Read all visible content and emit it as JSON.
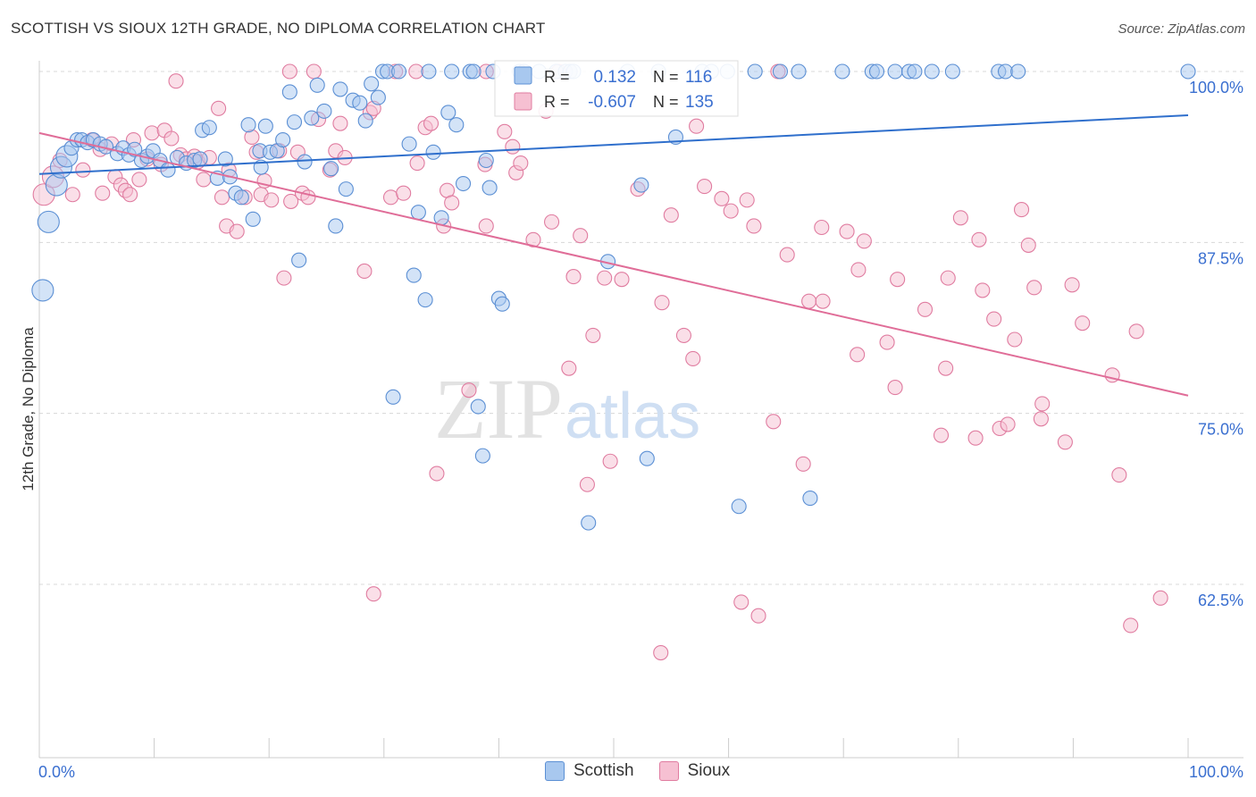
{
  "title": "SCOTTISH VS SIOUX 12TH GRADE, NO DIPLOMA CORRELATION CHART",
  "source": "Source: ZipAtlas.com",
  "watermark": {
    "zip": "ZIP",
    "atlas": "atlas"
  },
  "colors": {
    "scottish_fill": "#a8c8ef",
    "scottish_stroke": "#5b8fd4",
    "scottish_line": "#2f6fcc",
    "sioux_fill": "#f6c0d2",
    "sioux_stroke": "#e07ca0",
    "sioux_line": "#e06d98",
    "value_text": "#3a6fd0",
    "grid": "#d8d8d8"
  },
  "stats": {
    "scottish": {
      "r_label": "R =",
      "r_value": "0.132",
      "n_label": "N =",
      "n_value": "116"
    },
    "sioux": {
      "r_label": "R =",
      "r_value": "-0.607",
      "n_label": "N =",
      "n_value": "135"
    }
  },
  "legend": {
    "scottish": "Scottish",
    "sioux": "Sioux"
  },
  "chart_data": {
    "type": "scatter",
    "xlabel": "",
    "ylabel": "12th Grade, No Diploma",
    "xlim": [
      0,
      100
    ],
    "ylim": [
      52,
      100.9
    ],
    "x_tick_labels": {
      "left": "0.0%",
      "right": "100.0%"
    },
    "y_ticks": [
      {
        "value": 100.0,
        "label": "100.0%"
      },
      {
        "value": 87.5,
        "label": "87.5%"
      },
      {
        "value": 75.0,
        "label": "75.0%"
      },
      {
        "value": 62.5,
        "label": "62.5%"
      }
    ],
    "grid": true,
    "series": [
      {
        "name": "Scottish",
        "trend": {
          "x": [
            0,
            100
          ],
          "y": [
            92.5,
            96.8
          ]
        },
        "points": [
          [
            0.3,
            84.0
          ],
          [
            0.8,
            89.0
          ],
          [
            1.5,
            91.7
          ],
          [
            1.9,
            93.0
          ],
          [
            2.4,
            93.8
          ],
          [
            2.8,
            94.4
          ],
          [
            3.3,
            95.0
          ],
          [
            3.7,
            95.0
          ],
          [
            4.2,
            94.8
          ],
          [
            4.7,
            95.0
          ],
          [
            5.3,
            94.7
          ],
          [
            5.8,
            94.5
          ],
          [
            6.8,
            94.0
          ],
          [
            7.3,
            94.4
          ],
          [
            7.8,
            93.9
          ],
          [
            8.3,
            94.3
          ],
          [
            8.9,
            93.5
          ],
          [
            9.4,
            93.8
          ],
          [
            9.9,
            94.2
          ],
          [
            10.5,
            93.5
          ],
          [
            11.2,
            92.8
          ],
          [
            12.0,
            93.7
          ],
          [
            12.8,
            93.3
          ],
          [
            13.5,
            93.5
          ],
          [
            14.0,
            93.6
          ],
          [
            14.2,
            95.7
          ],
          [
            14.8,
            95.9
          ],
          [
            15.5,
            92.2
          ],
          [
            16.2,
            93.6
          ],
          [
            16.6,
            92.3
          ],
          [
            17.1,
            91.1
          ],
          [
            17.6,
            90.8
          ],
          [
            18.2,
            96.1
          ],
          [
            18.6,
            89.2
          ],
          [
            19.2,
            94.2
          ],
          [
            19.3,
            93.0
          ],
          [
            19.7,
            96.0
          ],
          [
            20.1,
            94.1
          ],
          [
            20.7,
            94.2
          ],
          [
            21.2,
            95.0
          ],
          [
            21.8,
            98.5
          ],
          [
            22.2,
            96.3
          ],
          [
            22.6,
            86.2
          ],
          [
            23.1,
            93.4
          ],
          [
            23.7,
            96.6
          ],
          [
            24.2,
            99.0
          ],
          [
            24.8,
            97.1
          ],
          [
            25.4,
            92.9
          ],
          [
            25.8,
            88.7
          ],
          [
            26.2,
            98.7
          ],
          [
            26.7,
            91.4
          ],
          [
            27.3,
            97.9
          ],
          [
            27.9,
            97.7
          ],
          [
            28.4,
            96.4
          ],
          [
            28.9,
            99.1
          ],
          [
            29.5,
            98.1
          ],
          [
            29.9,
            100.0
          ],
          [
            30.3,
            100.0
          ],
          [
            30.8,
            76.2
          ],
          [
            31.3,
            100.0
          ],
          [
            32.2,
            94.7
          ],
          [
            32.6,
            85.1
          ],
          [
            33.0,
            89.7
          ],
          [
            33.6,
            83.3
          ],
          [
            33.9,
            100.0
          ],
          [
            34.3,
            94.1
          ],
          [
            35.0,
            89.3
          ],
          [
            35.6,
            97.0
          ],
          [
            35.9,
            100.0
          ],
          [
            36.3,
            96.1
          ],
          [
            36.9,
            91.8
          ],
          [
            37.5,
            100.0
          ],
          [
            37.8,
            100.0
          ],
          [
            38.2,
            75.5
          ],
          [
            38.6,
            71.9
          ],
          [
            38.9,
            93.5
          ],
          [
            39.2,
            91.5
          ],
          [
            39.5,
            100.0
          ],
          [
            40.0,
            83.4
          ],
          [
            40.3,
            83.0
          ],
          [
            41.8,
            100.0
          ],
          [
            42.2,
            100.0
          ],
          [
            43.5,
            100.0
          ],
          [
            45.0,
            100.0
          ],
          [
            45.8,
            100.0
          ],
          [
            46.2,
            100.0
          ],
          [
            46.5,
            100.0
          ],
          [
            47.8,
            67.0
          ],
          [
            49.5,
            86.1
          ],
          [
            51.2,
            100.0
          ],
          [
            52.4,
            91.7
          ],
          [
            52.9,
            71.7
          ],
          [
            53.9,
            100.0
          ],
          [
            55.4,
            95.2
          ],
          [
            57.7,
            100.0
          ],
          [
            58.5,
            100.0
          ],
          [
            59.9,
            100.0
          ],
          [
            60.9,
            68.2
          ],
          [
            62.3,
            100.0
          ],
          [
            64.5,
            100.0
          ],
          [
            66.1,
            100.0
          ],
          [
            67.1,
            68.8
          ],
          [
            69.9,
            100.0
          ],
          [
            72.5,
            100.0
          ],
          [
            72.9,
            100.0
          ],
          [
            74.5,
            100.0
          ],
          [
            75.7,
            100.0
          ],
          [
            76.2,
            100.0
          ],
          [
            77.7,
            100.0
          ],
          [
            79.5,
            100.0
          ],
          [
            83.5,
            100.0
          ],
          [
            84.1,
            100.0
          ],
          [
            85.2,
            100.0
          ],
          [
            100.0,
            100.0
          ]
        ]
      },
      {
        "name": "Sioux",
        "trend": {
          "x": [
            0,
            100
          ],
          "y": [
            95.5,
            76.3
          ]
        },
        "points": [
          [
            0.4,
            91.0
          ],
          [
            1.2,
            92.3
          ],
          [
            1.8,
            93.5
          ],
          [
            2.9,
            91.0
          ],
          [
            3.8,
            92.8
          ],
          [
            4.6,
            95.0
          ],
          [
            5.3,
            94.3
          ],
          [
            5.5,
            91.1
          ],
          [
            6.3,
            94.7
          ],
          [
            6.6,
            92.3
          ],
          [
            7.1,
            91.7
          ],
          [
            7.5,
            91.3
          ],
          [
            7.9,
            91.0
          ],
          [
            8.2,
            95.0
          ],
          [
            8.7,
            92.1
          ],
          [
            9.4,
            93.6
          ],
          [
            9.8,
            95.5
          ],
          [
            10.6,
            93.2
          ],
          [
            10.9,
            95.7
          ],
          [
            11.5,
            95.1
          ],
          [
            11.9,
            99.3
          ],
          [
            12.3,
            93.9
          ],
          [
            12.8,
            93.6
          ],
          [
            13.5,
            93.8
          ],
          [
            13.8,
            93.4
          ],
          [
            14.3,
            92.1
          ],
          [
            14.8,
            93.7
          ],
          [
            15.6,
            97.3
          ],
          [
            15.9,
            90.8
          ],
          [
            16.3,
            88.7
          ],
          [
            16.5,
            92.8
          ],
          [
            17.2,
            88.3
          ],
          [
            17.9,
            90.8
          ],
          [
            18.5,
            95.2
          ],
          [
            18.9,
            94.1
          ],
          [
            19.3,
            91.0
          ],
          [
            19.6,
            92.0
          ],
          [
            20.2,
            90.6
          ],
          [
            20.9,
            94.2
          ],
          [
            21.3,
            84.9
          ],
          [
            21.9,
            90.5
          ],
          [
            21.8,
            100.0
          ],
          [
            22.5,
            94.1
          ],
          [
            22.9,
            91.1
          ],
          [
            23.4,
            90.8
          ],
          [
            23.9,
            100.0
          ],
          [
            24.3,
            96.5
          ],
          [
            25.3,
            92.8
          ],
          [
            25.8,
            94.2
          ],
          [
            26.2,
            96.2
          ],
          [
            26.6,
            93.7
          ],
          [
            28.3,
            85.4
          ],
          [
            28.8,
            97.0
          ],
          [
            29.1,
            97.3
          ],
          [
            29.1,
            61.8
          ],
          [
            30.6,
            90.8
          ],
          [
            31.0,
            100.0
          ],
          [
            31.7,
            91.1
          ],
          [
            32.8,
            100.0
          ],
          [
            32.9,
            93.3
          ],
          [
            33.6,
            95.9
          ],
          [
            34.1,
            96.2
          ],
          [
            34.6,
            70.6
          ],
          [
            35.2,
            88.7
          ],
          [
            35.5,
            91.3
          ],
          [
            35.9,
            90.4
          ],
          [
            37.4,
            76.7
          ],
          [
            38.8,
            93.2
          ],
          [
            38.9,
            100.0
          ],
          [
            38.9,
            88.7
          ],
          [
            40.5,
            95.6
          ],
          [
            41.2,
            94.5
          ],
          [
            41.5,
            92.6
          ],
          [
            41.9,
            93.3
          ],
          [
            42.2,
            98.0
          ],
          [
            43.0,
            87.7
          ],
          [
            44.1,
            97.1
          ],
          [
            44.6,
            89.0
          ],
          [
            45.2,
            100.0
          ],
          [
            46.1,
            78.3
          ],
          [
            46.5,
            85.0
          ],
          [
            47.1,
            88.0
          ],
          [
            47.7,
            69.8
          ],
          [
            48.2,
            80.7
          ],
          [
            49.2,
            84.9
          ],
          [
            49.7,
            71.5
          ],
          [
            50.7,
            84.8
          ],
          [
            52.1,
            91.4
          ],
          [
            54.1,
            57.5
          ],
          [
            54.2,
            83.1
          ],
          [
            55.0,
            89.5
          ],
          [
            56.1,
            80.7
          ],
          [
            56.9,
            79.0
          ],
          [
            57.2,
            96.0
          ],
          [
            57.9,
            91.6
          ],
          [
            59.4,
            90.7
          ],
          [
            60.2,
            89.8
          ],
          [
            61.1,
            61.2
          ],
          [
            61.6,
            90.6
          ],
          [
            62.2,
            88.7
          ],
          [
            62.6,
            60.2
          ],
          [
            63.9,
            74.4
          ],
          [
            64.3,
            100.0
          ],
          [
            65.1,
            86.6
          ],
          [
            66.5,
            71.3
          ],
          [
            67.0,
            83.2
          ],
          [
            68.1,
            88.6
          ],
          [
            68.2,
            83.2
          ],
          [
            70.3,
            88.3
          ],
          [
            71.2,
            79.3
          ],
          [
            71.3,
            85.5
          ],
          [
            71.8,
            87.6
          ],
          [
            73.8,
            80.2
          ],
          [
            74.5,
            76.9
          ],
          [
            74.7,
            84.8
          ],
          [
            77.1,
            82.6
          ],
          [
            78.5,
            73.4
          ],
          [
            78.9,
            78.3
          ],
          [
            79.1,
            84.9
          ],
          [
            80.2,
            89.3
          ],
          [
            81.5,
            73.2
          ],
          [
            81.8,
            87.7
          ],
          [
            82.1,
            84.0
          ],
          [
            83.1,
            81.9
          ],
          [
            83.6,
            73.9
          ],
          [
            84.3,
            74.2
          ],
          [
            84.9,
            80.4
          ],
          [
            85.5,
            89.9
          ],
          [
            86.1,
            87.3
          ],
          [
            86.6,
            84.2
          ],
          [
            87.2,
            74.6
          ],
          [
            87.3,
            75.7
          ],
          [
            89.3,
            72.9
          ],
          [
            89.9,
            84.4
          ],
          [
            90.8,
            81.6
          ],
          [
            93.4,
            77.8
          ],
          [
            94.0,
            70.5
          ],
          [
            95.0,
            59.5
          ],
          [
            95.5,
            81.0
          ],
          [
            97.6,
            61.5
          ]
        ]
      }
    ]
  }
}
